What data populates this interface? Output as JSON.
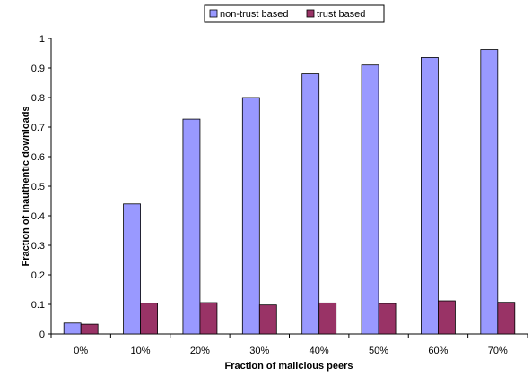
{
  "chart_data": {
    "type": "bar",
    "title": "",
    "xlabel": "Fraction of malicious peers",
    "ylabel": "Fraction of inauthentic downloads",
    "categories": [
      "0%",
      "10%",
      "20%",
      "30%",
      "40%",
      "50%",
      "60%",
      "70%"
    ],
    "ylim": [
      0,
      1
    ],
    "yticks": [
      "0",
      "0.1",
      "0.2",
      "0.3",
      "0.4",
      "0.5",
      "0.6",
      "0.7",
      "0.8",
      "0.9",
      "1"
    ],
    "grid": false,
    "legend": "top-center",
    "series": [
      {
        "name": "non-trust based",
        "color": "#9999ff",
        "values": [
          0.037,
          0.44,
          0.727,
          0.8,
          0.88,
          0.91,
          0.935,
          0.962
        ]
      },
      {
        "name": "trust based",
        "color": "#993366",
        "values": [
          0.033,
          0.104,
          0.106,
          0.098,
          0.105,
          0.103,
          0.112,
          0.107
        ]
      }
    ]
  }
}
